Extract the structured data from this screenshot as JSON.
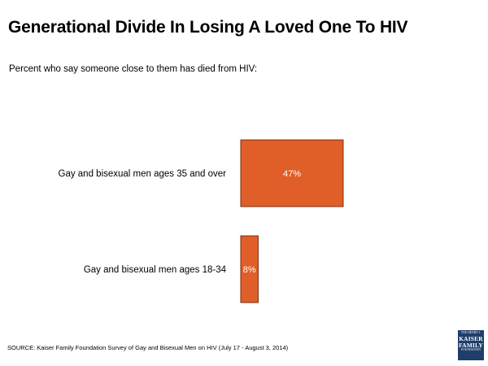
{
  "header": {
    "title": "Generational Divide In Losing A Loved One To HIV",
    "subtitle": "Percent who say someone close to them has died from HIV:"
  },
  "chart_data": {
    "type": "bar",
    "orientation": "horizontal",
    "categories": [
      "Gay and bisexual men ages 35 and over",
      "Gay and bisexual men ages 18-34"
    ],
    "values": [
      47,
      8
    ],
    "value_labels": [
      "47%",
      "8%"
    ],
    "bar_color": "#e05e27",
    "bar_border_color": "#7a2e10",
    "grid": false,
    "legend": "none"
  },
  "footer": {
    "source": "SOURCE: Kaiser Family Foundation Survey of Gay and Bisexual Men on HIV (July 17 - August 3, 2014)"
  },
  "logo": {
    "top_line": "THE HENRY J.",
    "line1": "KAISER",
    "line2": "FAMILY",
    "bottom_line": "FOUNDATION",
    "color": "#1f3e6b"
  }
}
